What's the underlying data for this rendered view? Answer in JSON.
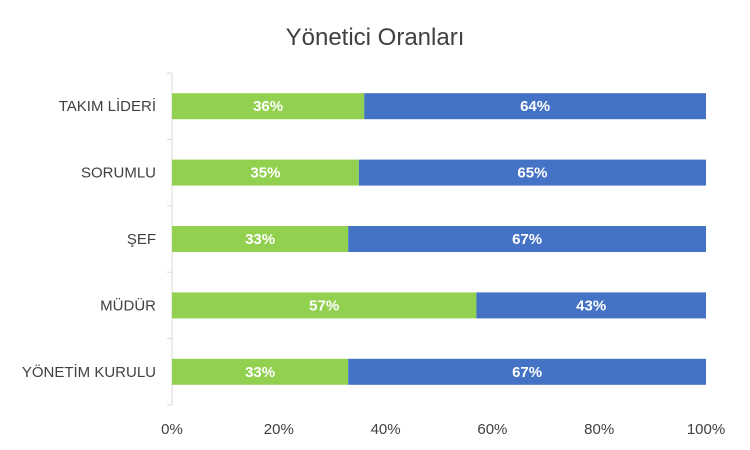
{
  "chart_data": {
    "type": "bar",
    "orientation": "horizontal",
    "stacked": "percent",
    "title": "Yönetici Oranları",
    "categories": [
      "TAKIM LİDERİ",
      "SORUMLU",
      "ŞEF",
      "MÜDÜR",
      "YÖNETİM KURULU"
    ],
    "series": [
      {
        "values": [
          36,
          35,
          33,
          57,
          33
        ],
        "labels": [
          "36%",
          "35%",
          "33%",
          "57%",
          "33%"
        ],
        "color": "#92D050"
      },
      {
        "values": [
          64,
          65,
          67,
          43,
          67
        ],
        "labels": [
          "64%",
          "65%",
          "67%",
          "43%",
          "67%"
        ],
        "color": "#4472C4"
      }
    ],
    "xlim": [
      0,
      100
    ],
    "x_ticks": [
      "0%",
      "20%",
      "40%",
      "60%",
      "80%",
      "100%"
    ],
    "grid": false,
    "legend": "none"
  }
}
